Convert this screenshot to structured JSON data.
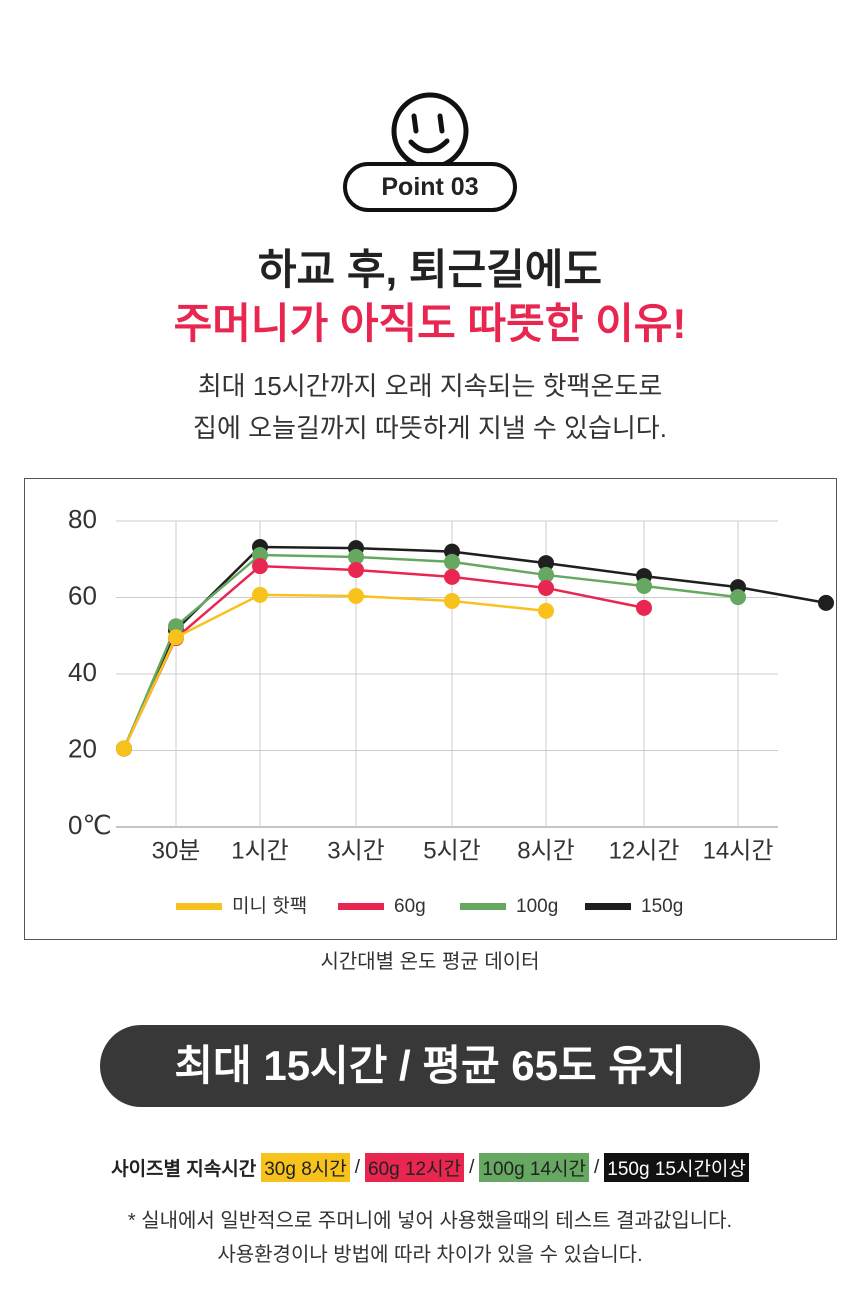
{
  "header": {
    "badge": "Point 03",
    "title_line1": "하교 후, 퇴근길에도",
    "title_line2": "주머니가 아직도 따뜻한 이유!",
    "desc_line1": "최대 15시간까지 오래 지속되는 핫팩온도로",
    "desc_line2": "집에 오늘길까지 따뜻하게 지낼 수 있습니다."
  },
  "chart_data": {
    "type": "line",
    "categories": [
      null,
      "30분",
      "1시간",
      "3시간",
      "5시간",
      "8시간",
      "12시간",
      "14시간",
      null
    ],
    "series": [
      {
        "name": "미니 핫팩",
        "color": "#f8c21c",
        "values": [
          20.5,
          49.6,
          60.7,
          60.4,
          59.1,
          56.5,
          null,
          null,
          null
        ]
      },
      {
        "name": "60g",
        "color": "#e8264f",
        "values": [
          20.5,
          49.4,
          68.2,
          67.2,
          65.4,
          62.5,
          57.3,
          null,
          null
        ]
      },
      {
        "name": "100g",
        "color": "#66a862",
        "values": [
          20.5,
          52.5,
          71.1,
          70.6,
          69.3,
          65.9,
          63.0,
          60.1,
          null
        ]
      },
      {
        "name": "150g",
        "color": "#1f1f1f",
        "values": [
          20.5,
          51.5,
          73.2,
          72.9,
          72.0,
          69.0,
          65.6,
          62.7,
          58.6
        ]
      }
    ],
    "ylim": [
      0,
      80
    ],
    "yticks": [
      {
        "value": 0,
        "label": "0℃"
      },
      20,
      40,
      60,
      80
    ],
    "grid": true,
    "caption": "시간대별 온도 평균 데이터"
  },
  "banner": "최대 15시간 / 평균 65도 유지",
  "sizes": {
    "label": "사이즈별 지속시간",
    "separator": "/",
    "items": [
      {
        "text": "30g 8시간",
        "color": "#f8c21c",
        "text_color": "#222"
      },
      {
        "text": "60g 12시간",
        "color": "#e8264f",
        "text_color": "#222"
      },
      {
        "text": "100g 14시간",
        "color": "#66a862",
        "text_color": "#222"
      },
      {
        "text": "150g 15시간이상",
        "color": "#111111",
        "text_color": "#ffffff"
      }
    ]
  },
  "note_line1": "* 실내에서 일반적으로 주머니에 넣어 사용했을때의 테스트 결과값입니다.",
  "note_line2": "사용환경이나 방법에 따라 차이가 있을 수 있습니다."
}
